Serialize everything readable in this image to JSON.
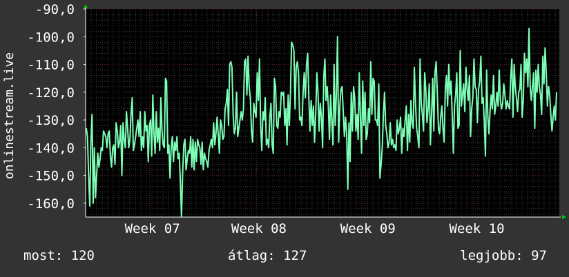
{
  "chart_data": {
    "type": "line",
    "ylabel": "onlinestream.live",
    "yticks": [
      "-90,0",
      "-100,0",
      "-110,0",
      "-120,0",
      "-130,0",
      "-140,0",
      "-150,0",
      "-160,0"
    ],
    "ytick_values": [
      -90,
      -100,
      -110,
      -120,
      -130,
      -140,
      -150,
      -160
    ],
    "ylim": [
      -165,
      -90
    ],
    "xticks": [
      "Week 07",
      "Week 08",
      "Week 09",
      "Week 10"
    ],
    "xtick_positions": [
      0.135,
      0.36,
      0.59,
      0.82
    ],
    "grid": true,
    "colors": {
      "background": "#333333",
      "plot": "#000000",
      "line": "#7dffb6",
      "grid_minor": "#3a3a3a",
      "grid_major": "#5a2222",
      "axis": "#ffffff",
      "arrow": "#00cc00"
    },
    "series": [
      {
        "values": [
          -133,
          -136,
          -150,
          -161,
          -138,
          -128,
          -160,
          -140,
          -158,
          -150,
          -142,
          -147,
          -144,
          -140,
          -141,
          -134,
          -135,
          -136,
          -140,
          -135,
          -134,
          -143,
          -147,
          -140,
          -139,
          -146,
          -131,
          -134,
          -140,
          -138,
          -132,
          -150,
          -131,
          -137,
          -140,
          -127,
          -133,
          -140,
          -137,
          -128,
          -122,
          -141,
          -139,
          -136,
          -133,
          -130,
          -136,
          -127,
          -141,
          -136,
          -140,
          -127,
          -134,
          -132,
          -145,
          -132,
          -130,
          -143,
          -121,
          -135,
          -142,
          -127,
          -138,
          -133,
          -141,
          -122,
          -134,
          -139,
          -140,
          -115,
          -116,
          -142,
          -139,
          -151,
          -140,
          -136,
          -145,
          -138,
          -141,
          -136,
          -144,
          -142,
          -152,
          -165,
          -149,
          -139,
          -137,
          -148,
          -144,
          -141,
          -142,
          -136,
          -147,
          -137,
          -148,
          -138,
          -145,
          -137,
          -139,
          -140,
          -146,
          -138,
          -148,
          -142,
          -144,
          -145,
          -147,
          -141,
          -139,
          -137,
          -140,
          -131,
          -139,
          -135,
          -129,
          -135,
          -142,
          -130,
          -132,
          -137,
          -136,
          -126,
          -124,
          -119,
          -132,
          -110,
          -109,
          -111,
          -128,
          -135,
          -133,
          -120,
          -136,
          -133,
          -130,
          -127,
          -130,
          -126,
          -109,
          -108,
          -121,
          -107,
          -118,
          -122,
          -134,
          -138,
          -124,
          -127,
          -129,
          -113,
          -123,
          -108,
          -132,
          -141,
          -127,
          -130,
          -122,
          -139,
          -137,
          -140,
          -129,
          -124,
          -139,
          -142,
          -115,
          -118,
          -132,
          -133,
          -127,
          -129,
          -120,
          -121,
          -120,
          -132,
          -126,
          -139,
          -121,
          -132,
          -120,
          -102,
          -103,
          -105,
          -126,
          -111,
          -109,
          -113,
          -130,
          -129,
          -132,
          -120,
          -113,
          -122,
          -110,
          -106,
          -122,
          -134,
          -123,
          -132,
          -125,
          -138,
          -128,
          -113,
          -120,
          -134,
          -124,
          -129,
          -140,
          -115,
          -108,
          -123,
          -118,
          -125,
          -137,
          -121,
          -130,
          -139,
          -110,
          -132,
          -121,
          -100,
          -138,
          -125,
          -119,
          -118,
          -127,
          -136,
          -129,
          -135,
          -155,
          -131,
          -145,
          -120,
          -134,
          -118,
          -122,
          -134,
          -128,
          -137,
          -113,
          -129,
          -142,
          -116,
          -132,
          -120,
          -137,
          -135,
          -126,
          -131,
          -109,
          -128,
          -115,
          -116,
          -130,
          -130,
          -132,
          -117,
          -151,
          -146,
          -140,
          -128,
          -120,
          -132,
          -135,
          -140,
          -138,
          -131,
          -139,
          -137,
          -140,
          -139,
          -141,
          -130,
          -135,
          -133,
          -129,
          -142,
          -133,
          -136,
          -130,
          -125,
          -141,
          -128,
          -138,
          -123,
          -131,
          -133,
          -111,
          -124,
          -133,
          -136,
          -140,
          -108,
          -124,
          -128,
          -134,
          -113,
          -119,
          -131,
          -126,
          -117,
          -139,
          -128,
          -115,
          -134,
          -113,
          -109,
          -120,
          -133,
          -135,
          -129,
          -125,
          -133,
          -138,
          -119,
          -114,
          -125,
          -110,
          -121,
          -116,
          -128,
          -142,
          -125,
          -121,
          -113,
          -133,
          -132,
          -105,
          -125,
          -121,
          -117,
          -127,
          -111,
          -119,
          -123,
          -114,
          -136,
          -126,
          -122,
          -108,
          -118,
          -119,
          -131,
          -119,
          -116,
          -107,
          -124,
          -122,
          -131,
          -143,
          -112,
          -128,
          -135,
          -127,
          -121,
          -126,
          -114,
          -128,
          -125,
          -120,
          -125,
          -112,
          -123,
          -126,
          -124,
          -117,
          -121,
          -126,
          -123,
          -125,
          -126,
          -115,
          -108,
          -129,
          -110,
          -118,
          -122,
          -127,
          -120,
          -119,
          -110,
          -129,
          -123,
          -106,
          -113,
          -108,
          -118,
          -97,
          -118,
          -123,
          -118,
          -113,
          -133,
          -112,
          -120,
          -110,
          -118,
          -121,
          -128,
          -107,
          -117,
          -104,
          -113,
          -125,
          -118,
          -121,
          -128,
          -134,
          -129,
          -125,
          -130,
          -120
        ]
      }
    ]
  },
  "footer": {
    "current": "most: 120",
    "average": "átlag: 127",
    "best": "legjobb: 97"
  }
}
